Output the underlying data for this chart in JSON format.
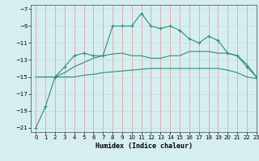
{
  "xlabel": "Humidex (Indice chaleur)",
  "background_color": "#d6eef0",
  "grid_color": "#b8dde0",
  "line_color": "#2e8b7a",
  "xlim": [
    -0.5,
    23
  ],
  "ylim": [
    -21.5,
    -6.5
  ],
  "yticks": [
    -21,
    -19,
    -17,
    -15,
    -13,
    -11,
    -9,
    -7
  ],
  "xticks": [
    0,
    1,
    2,
    3,
    4,
    5,
    6,
    7,
    8,
    9,
    10,
    11,
    12,
    13,
    14,
    15,
    16,
    17,
    18,
    19,
    20,
    21,
    22,
    23
  ],
  "curve1_x": [
    0,
    1,
    2,
    3,
    4,
    5,
    6,
    7,
    8,
    9,
    10,
    11,
    12,
    13,
    14,
    15,
    16,
    17,
    18,
    19,
    20,
    21,
    22,
    23
  ],
  "curve1_y": [
    -21,
    -18.5,
    -15,
    -13.8,
    -12.5,
    -12.2,
    -12.5,
    -12.5,
    -9,
    -9,
    -9,
    -7.5,
    -9,
    -9.3,
    -9,
    -9.5,
    -10.5,
    -11,
    -10.2,
    -10.7,
    -12.2,
    -12.5,
    -13.8,
    -15
  ],
  "curve2_x": [
    0,
    1,
    2,
    3,
    4,
    5,
    6,
    7,
    8,
    9,
    10,
    11,
    12,
    13,
    14,
    15,
    16,
    17,
    18,
    19,
    20,
    21,
    22,
    23
  ],
  "curve2_y": [
    -15,
    -15,
    -15,
    -15,
    -15,
    -14.8,
    -14.7,
    -14.5,
    -14.4,
    -14.3,
    -14.2,
    -14.1,
    -14.0,
    -14.0,
    -14.0,
    -14.0,
    -14.0,
    -14.0,
    -14.0,
    -14.0,
    -14.2,
    -14.5,
    -15,
    -15.2
  ],
  "curve3_x": [
    0,
    1,
    2,
    3,
    4,
    5,
    6,
    7,
    8,
    9,
    10,
    11,
    12,
    13,
    14,
    15,
    16,
    17,
    18,
    19,
    20,
    21,
    22,
    23
  ],
  "curve3_y": [
    -15,
    -15,
    -15,
    -14.5,
    -13.8,
    -13.3,
    -12.8,
    -12.5,
    -12.3,
    -12.2,
    -12.5,
    -12.5,
    -12.8,
    -12.8,
    -12.5,
    -12.5,
    -12.0,
    -12.0,
    -12.0,
    -12.2,
    -12.2,
    -12.5,
    -13.5,
    -15
  ]
}
